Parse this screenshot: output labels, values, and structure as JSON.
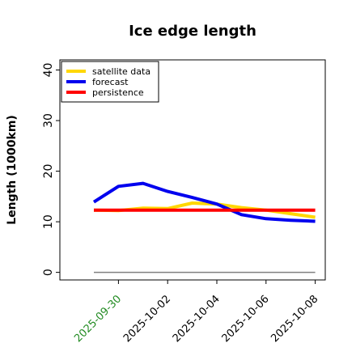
{
  "chart_data": {
    "type": "line",
    "title": "Ice edge length",
    "xlabel": "",
    "ylabel": "Length (1000km)",
    "ylim": [
      -1.5,
      42
    ],
    "yticks": [
      0,
      10,
      20,
      30,
      40
    ],
    "ytick_labels": [
      "0",
      "10",
      "20",
      "30",
      "40"
    ],
    "x": [
      "2025-09-29",
      "2025-09-30",
      "2025-10-01",
      "2025-10-02",
      "2025-10-03",
      "2025-10-04",
      "2025-10-05",
      "2025-10-06",
      "2025-10-07",
      "2025-10-08"
    ],
    "xticks": [
      {
        "label": "2025-09-30",
        "index": 1,
        "color": "#228B22"
      },
      {
        "label": "2025-10-02",
        "index": 3,
        "color": "#000000"
      },
      {
        "label": "2025-10-04",
        "index": 5,
        "color": "#000000"
      },
      {
        "label": "2025-10-06",
        "index": 7,
        "color": "#000000"
      },
      {
        "label": "2025-10-08",
        "index": 9,
        "color": "#000000"
      }
    ],
    "series": [
      {
        "name": "satellite data",
        "color": "#FFD700",
        "values": [
          12.3,
          12.2,
          12.7,
          12.6,
          13.7,
          13.5,
          12.8,
          12.3,
          11.6,
          10.9
        ]
      },
      {
        "name": "forecast",
        "color": "#0000EE",
        "values": [
          13.9,
          17.0,
          17.6,
          16.0,
          14.8,
          13.5,
          11.4,
          10.6,
          10.3,
          10.1
        ]
      },
      {
        "name": "persistence",
        "color": "#FF0000",
        "values": [
          12.3,
          12.3,
          12.3,
          12.3,
          12.3,
          12.3,
          12.3,
          12.3,
          12.3,
          12.3
        ]
      },
      {
        "values": [
          0,
          0,
          0,
          0,
          0,
          0,
          0,
          0,
          0,
          0
        ],
        "color": "#808080"
      }
    ],
    "legend": {
      "placement": "top-left"
    },
    "grid": false
  }
}
